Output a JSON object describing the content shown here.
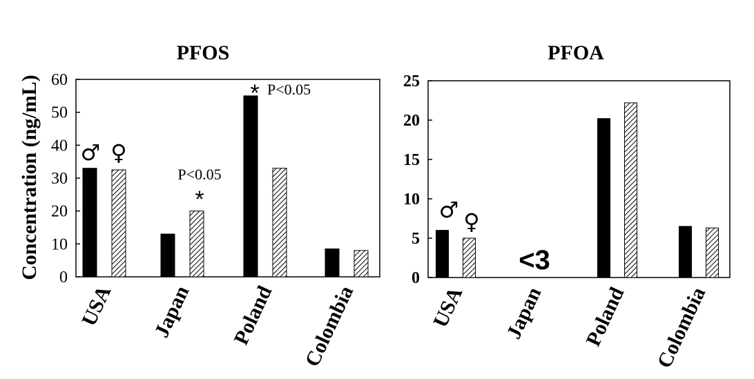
{
  "legend": {
    "male_symbol": "♂",
    "female_symbol": "♀",
    "male_fill": "#000000",
    "female_fill": "hatched"
  },
  "chart_data": [
    {
      "type": "bar",
      "title": "PFOS",
      "ylabel": "Concentration (ng/mL)",
      "ylim": [
        0,
        60
      ],
      "yticks": [
        "0",
        "10",
        "20",
        "30",
        "40",
        "50",
        "60"
      ],
      "categories": [
        "USA",
        "Japan",
        "Poland",
        "Colombia"
      ],
      "series": [
        {
          "name": "♂",
          "values": [
            33,
            13,
            55,
            8.5
          ]
        },
        {
          "name": "♀",
          "values": [
            32.5,
            20,
            33,
            8
          ]
        }
      ],
      "annotations": {
        "japan_p": "P<0.05",
        "japan_star": "*",
        "poland_star": "*",
        "poland_p": "P<0.05"
      }
    },
    {
      "type": "bar",
      "title": "PFOA",
      "ylabel": "",
      "ylim": [
        0,
        25
      ],
      "yticks": [
        "0",
        "5",
        "10",
        "15",
        "20",
        "25"
      ],
      "categories": [
        "USA",
        "Japan",
        "Poland",
        "Colombia"
      ],
      "series": [
        {
          "name": "♂",
          "values": [
            6,
            null,
            20.2,
            6.5
          ]
        },
        {
          "name": "♀",
          "values": [
            5,
            null,
            22.2,
            6.3
          ]
        }
      ],
      "annotations": {
        "japan_text": "<3"
      }
    }
  ]
}
